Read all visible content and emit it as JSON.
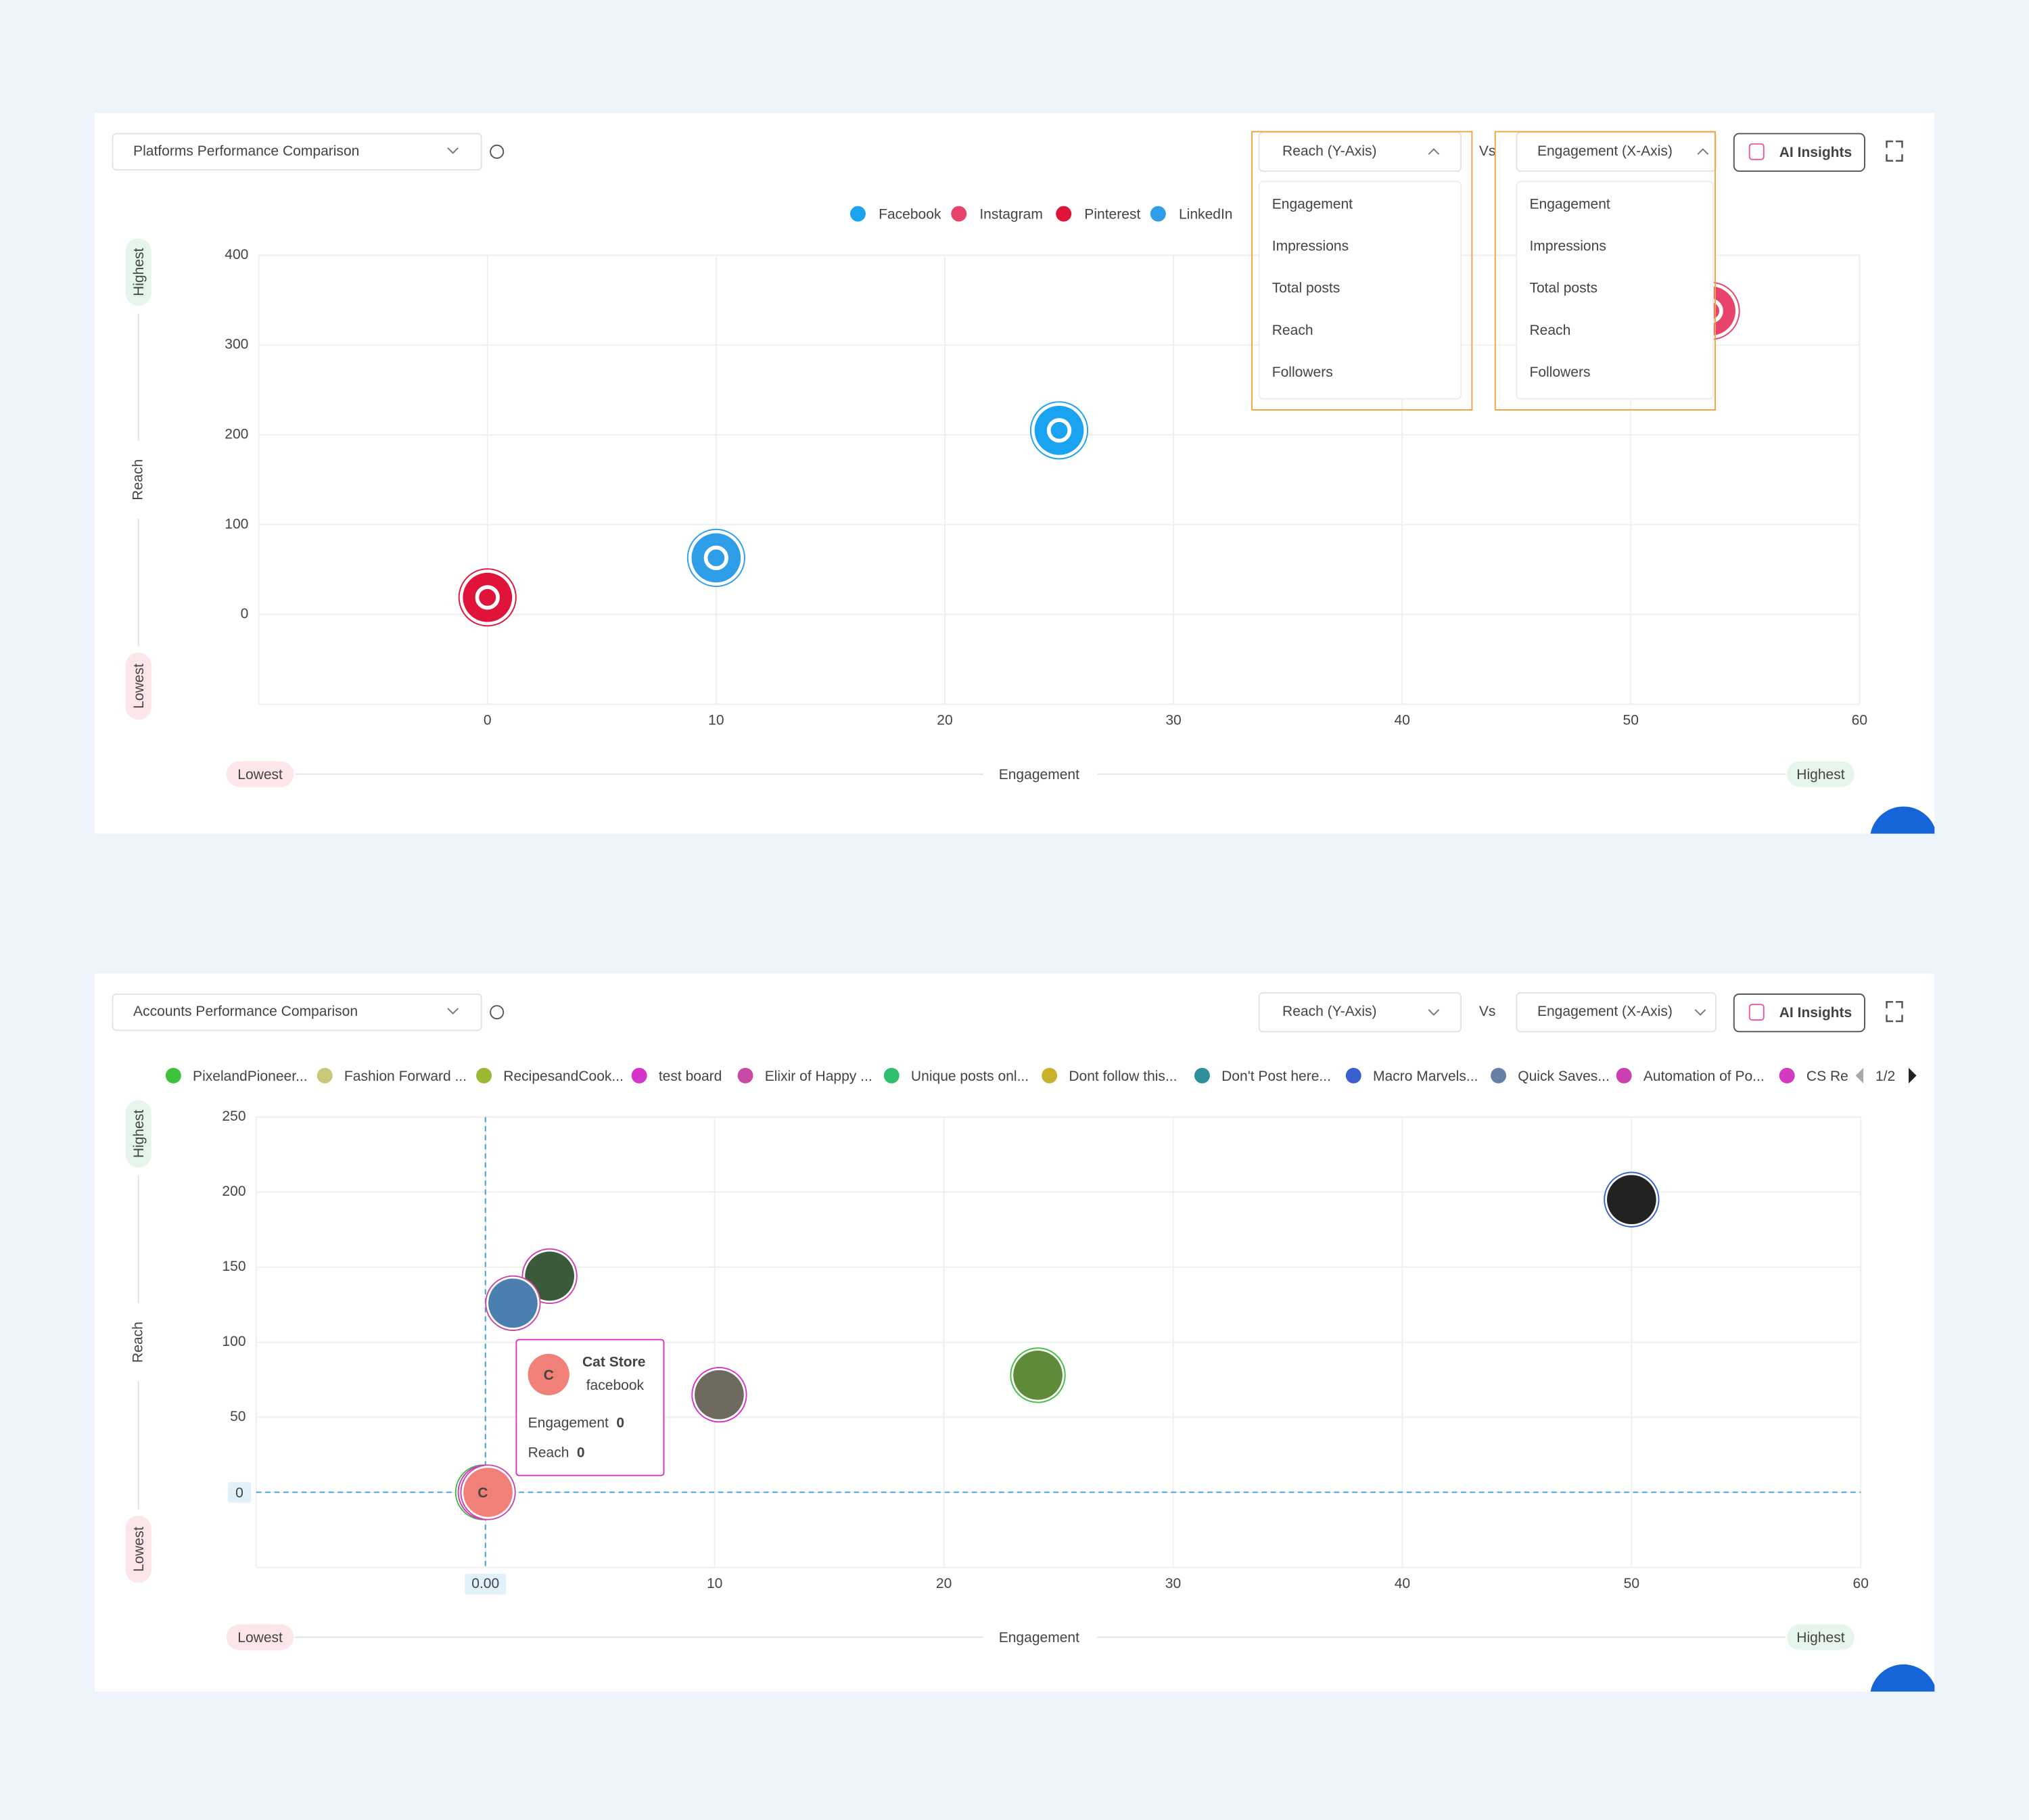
{
  "chart_data": [
    {
      "type": "scatter",
      "title": "Platforms Performance Comparison",
      "y_select": "Reach (Y-Axis)",
      "vs": "Vs",
      "x_select": "Engagement (X-Axis)",
      "ai_button": "AI Insights",
      "x_label": "Engagement",
      "y_label": "Reach",
      "low_label": "Lowest",
      "high_label": "Highest",
      "series": [
        {
          "name": "Facebook",
          "color": "#1aa3f0",
          "x": [
            25
          ],
          "values": [
            205
          ]
        },
        {
          "name": "Instagram",
          "color": "#e8436a",
          "x": [
            53.5
          ],
          "values": [
            338
          ]
        },
        {
          "name": "Pinterest",
          "color": "#e0143a",
          "x": [
            0
          ],
          "values": [
            19
          ]
        },
        {
          "name": "LinkedIn",
          "color": "#2f9ee8",
          "x": [
            10
          ],
          "values": [
            63
          ]
        }
      ],
      "xlim": [
        -10,
        60
      ],
      "xticks": [
        0,
        10,
        20,
        30,
        40,
        50,
        60
      ],
      "ylim": [
        -100,
        400
      ],
      "yticks": [
        0,
        100,
        200,
        300,
        400
      ],
      "grid": true,
      "y_options": [
        "Engagement",
        "Impressions",
        "Total posts",
        "Reach",
        "Followers"
      ],
      "x_options": [
        "Engagement",
        "Impressions",
        "Total posts",
        "Reach",
        "Followers"
      ]
    },
    {
      "type": "scatter",
      "title": "Accounts Performance Comparison",
      "y_select": "Reach (Y-Axis)",
      "vs": "Vs",
      "x_select": "Engagement (X-Axis)",
      "ai_button": "AI Insights",
      "x_label": "Engagement",
      "y_label": "Reach",
      "low_label": "Lowest",
      "high_label": "Highest",
      "legend": [
        {
          "name": "PixelandPioneer...",
          "color": "#3cc23c"
        },
        {
          "name": "Fashion Forward ...",
          "color": "#c8c87a"
        },
        {
          "name": "RecipesandCook...",
          "color": "#9ab832"
        },
        {
          "name": "test board",
          "color": "#d633c9"
        },
        {
          "name": "Elixir of Happy ...",
          "color": "#c94aa6"
        },
        {
          "name": "Unique posts onl...",
          "color": "#2fbf6a"
        },
        {
          "name": "Dont follow this...",
          "color": "#c9b22a"
        },
        {
          "name": "Don't  Post here...",
          "color": "#2f8f9a"
        },
        {
          "name": "Macro Marvels...",
          "color": "#3a5fcf"
        },
        {
          "name": "Quick Saves...",
          "color": "#6a7fa8"
        },
        {
          "name": "Automation of Po...",
          "color": "#cc3fb3"
        },
        {
          "name": "CS Re",
          "color": "#d43ac0"
        }
      ],
      "legend_page": "1/2",
      "x": [
        50,
        2.8,
        1.2,
        10.2,
        24.1,
        0,
        0,
        0
      ],
      "values": [
        195,
        144,
        126,
        65,
        78,
        0,
        0,
        0
      ],
      "point_colors": [
        "#3a5fcf",
        "#cc3fb3",
        "#c94aa6",
        "#d633c9",
        "#3cc23c",
        "#3cc23c",
        "#d633c9",
        "#c94aa6"
      ],
      "xlim": [
        -10,
        60
      ],
      "xticks": [
        0,
        10,
        20,
        30,
        40,
        50,
        60
      ],
      "ylim": [
        -50,
        250
      ],
      "yticks": [
        0,
        50,
        100,
        150,
        200,
        250
      ],
      "grid": true,
      "crosshair": {
        "x": {
          "value": 0,
          "label": "0.00"
        },
        "y": 0
      },
      "tooltip": {
        "letter": "C",
        "name": "Cat Store",
        "platform": "facebook",
        "metrics": [
          {
            "label": "Engagement",
            "value": 0
          },
          {
            "label": "Reach",
            "value": 0
          }
        ]
      }
    }
  ]
}
